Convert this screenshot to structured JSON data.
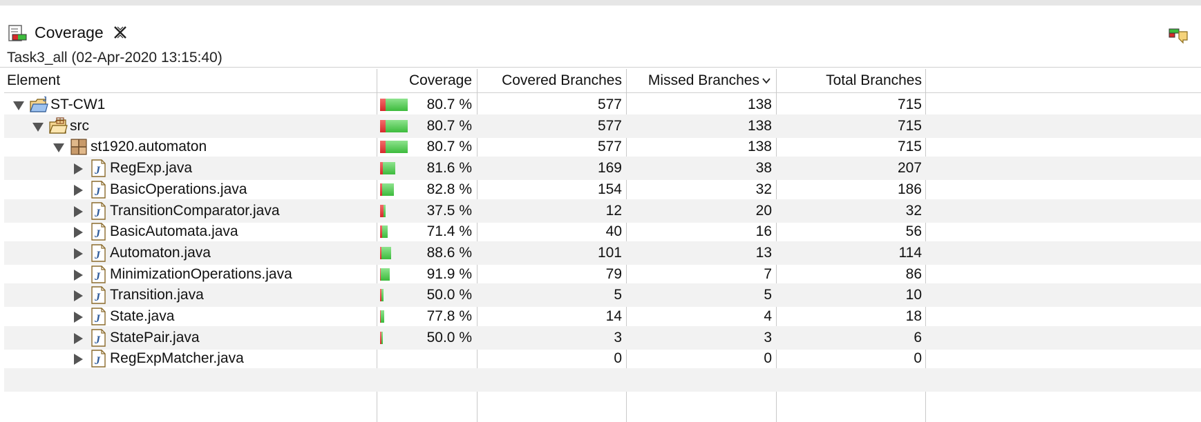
{
  "view": {
    "tab_label": "Coverage",
    "session_label": "Task3_all (02-Apr-2020 13:15:40)"
  },
  "columns": {
    "element": "Element",
    "coverage": "Coverage",
    "covered": "Covered Branches",
    "missed": "Missed Branches",
    "total": "Total Branches"
  },
  "rows": [
    {
      "name": "ST-CW1",
      "kind": "project",
      "level": 0,
      "expanded": true,
      "coverage": "80.7 %",
      "covered": "577",
      "missed": "138",
      "total": "715",
      "ratio": 0.807
    },
    {
      "name": "src",
      "kind": "folder",
      "level": 1,
      "expanded": true,
      "coverage": "80.7 %",
      "covered": "577",
      "missed": "138",
      "total": "715",
      "ratio": 0.807
    },
    {
      "name": "st1920.automaton",
      "kind": "package",
      "level": 2,
      "expanded": true,
      "coverage": "80.7 %",
      "covered": "577",
      "missed": "138",
      "total": "715",
      "ratio": 0.807
    },
    {
      "name": "RegExp.java",
      "kind": "java",
      "level": 3,
      "expanded": false,
      "coverage": "81.6 %",
      "covered": "169",
      "missed": "38",
      "total": "207",
      "ratio": 0.816
    },
    {
      "name": "BasicOperations.java",
      "kind": "java",
      "level": 3,
      "expanded": false,
      "coverage": "82.8 %",
      "covered": "154",
      "missed": "32",
      "total": "186",
      "ratio": 0.828
    },
    {
      "name": "TransitionComparator.java",
      "kind": "java",
      "level": 3,
      "expanded": false,
      "coverage": "37.5 %",
      "covered": "12",
      "missed": "20",
      "total": "32",
      "ratio": 0.375
    },
    {
      "name": "BasicAutomata.java",
      "kind": "java",
      "level": 3,
      "expanded": false,
      "coverage": "71.4 %",
      "covered": "40",
      "missed": "16",
      "total": "56",
      "ratio": 0.714
    },
    {
      "name": "Automaton.java",
      "kind": "java",
      "level": 3,
      "expanded": false,
      "coverage": "88.6 %",
      "covered": "101",
      "missed": "13",
      "total": "114",
      "ratio": 0.886
    },
    {
      "name": "MinimizationOperations.java",
      "kind": "java",
      "level": 3,
      "expanded": false,
      "coverage": "91.9 %",
      "covered": "79",
      "missed": "7",
      "total": "86",
      "ratio": 0.919
    },
    {
      "name": "Transition.java",
      "kind": "java",
      "level": 3,
      "expanded": false,
      "coverage": "50.0 %",
      "covered": "5",
      "missed": "5",
      "total": "10",
      "ratio": 0.5
    },
    {
      "name": "State.java",
      "kind": "java",
      "level": 3,
      "expanded": false,
      "coverage": "77.8 %",
      "covered": "14",
      "missed": "4",
      "total": "18",
      "ratio": 0.778
    },
    {
      "name": "StatePair.java",
      "kind": "java",
      "level": 3,
      "expanded": false,
      "coverage": "50.0 %",
      "covered": "3",
      "missed": "3",
      "total": "6",
      "ratio": 0.5
    },
    {
      "name": "RegExpMatcher.java",
      "kind": "java",
      "level": 3,
      "expanded": false,
      "coverage": "",
      "covered": "0",
      "missed": "0",
      "total": "0",
      "ratio": null
    }
  ],
  "icons": {
    "tab": "coverage-view-icon",
    "close": "close-icon",
    "view_menu": "view-menu-icon",
    "expanded": "triangle-down-icon",
    "collapsed": "triangle-right-icon",
    "project": "java-project-icon",
    "folder": "source-folder-icon",
    "package": "package-icon",
    "java": "java-file-icon",
    "sort": "sort-descending-icon"
  },
  "colors": {
    "covered": "#3dbb3d",
    "missed": "#d52b2b",
    "alt_row": "#f2f2f2"
  }
}
